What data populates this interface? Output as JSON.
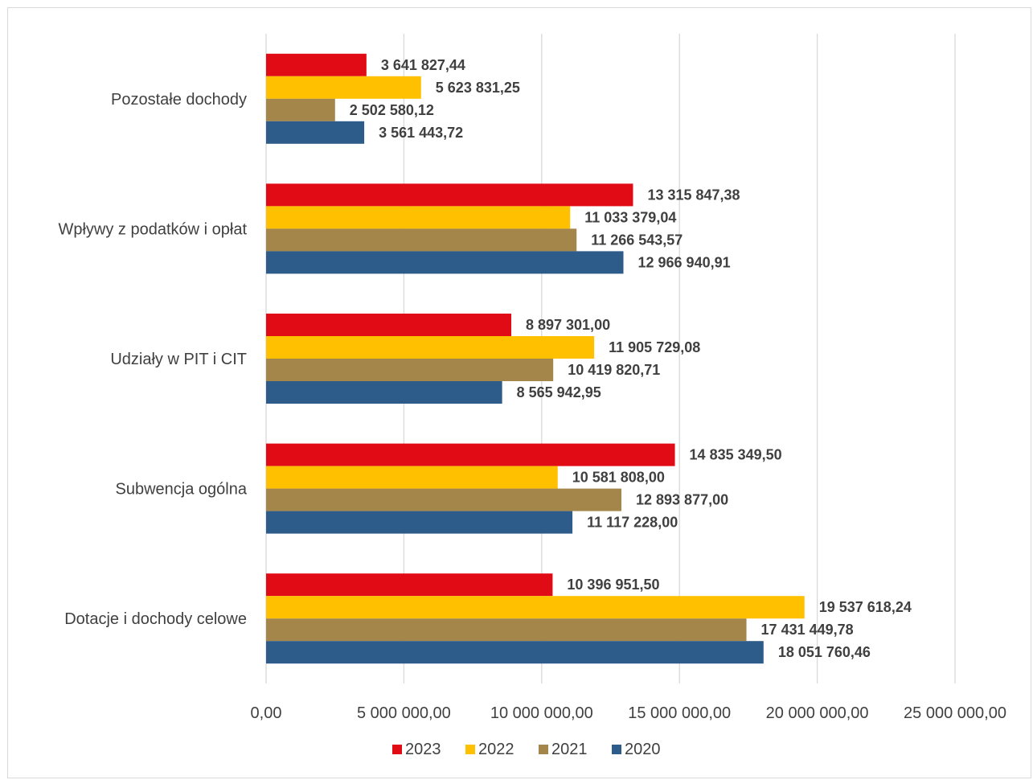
{
  "chart_data": {
    "type": "bar",
    "orientation": "horizontal",
    "categories": [
      "Pozostałe dochody",
      "Wpływy z podatków i opłat",
      "Udziały w PIT i CIT",
      "Subwencja ogólna",
      "Dotacje i dochody celowe"
    ],
    "series": [
      {
        "name": "2023",
        "color": "#e00b14",
        "values": [
          3641827.44,
          13315847.38,
          8897301.0,
          14835349.5,
          10396951.5
        ],
        "labels": [
          "3 641 827,44",
          "13 315 847,38",
          "8 897 301,00",
          "14 835 349,50",
          "10 396 951,50"
        ]
      },
      {
        "name": "2022",
        "color": "#ffc000",
        "values": [
          5623831.25,
          11033379.04,
          11905729.08,
          10581808.0,
          19537618.24
        ],
        "labels": [
          "5 623 831,25",
          "11 033 379,04",
          "11 905 729,08",
          "10 581 808,00",
          "19 537 618,24"
        ]
      },
      {
        "name": "2021",
        "color": "#a5864a",
        "values": [
          2502580.12,
          11266543.57,
          10419820.71,
          12893877.0,
          17431449.78
        ],
        "labels": [
          "2 502 580,12",
          "11 266 543,57",
          "10 419 820,71",
          "12 893 877,00",
          "17 431 449,78"
        ]
      },
      {
        "name": "2020",
        "color": "#2e5c8a",
        "values": [
          3561443.72,
          12966940.91,
          8565942.95,
          11117228.0,
          18051760.46
        ],
        "labels": [
          "3 561 443,72",
          "12 966 940,91",
          "8 565 942,95",
          "11 117 228,00",
          "18 051 760,46"
        ]
      }
    ],
    "xlim": [
      0,
      25000000
    ],
    "xticks": [
      0,
      5000000,
      10000000,
      15000000,
      20000000,
      25000000
    ],
    "xtick_labels": [
      "0,00",
      "5 000 000,00",
      "10 000 000,00",
      "15 000 000,00",
      "20 000 000,00",
      "25 000 000,00"
    ],
    "gridlines": "vertical",
    "gridline_color": "#d9d9d9",
    "text_color": "#404040",
    "legend": {
      "position": "bottom",
      "order": [
        "2023",
        "2022",
        "2021",
        "2020"
      ]
    }
  }
}
